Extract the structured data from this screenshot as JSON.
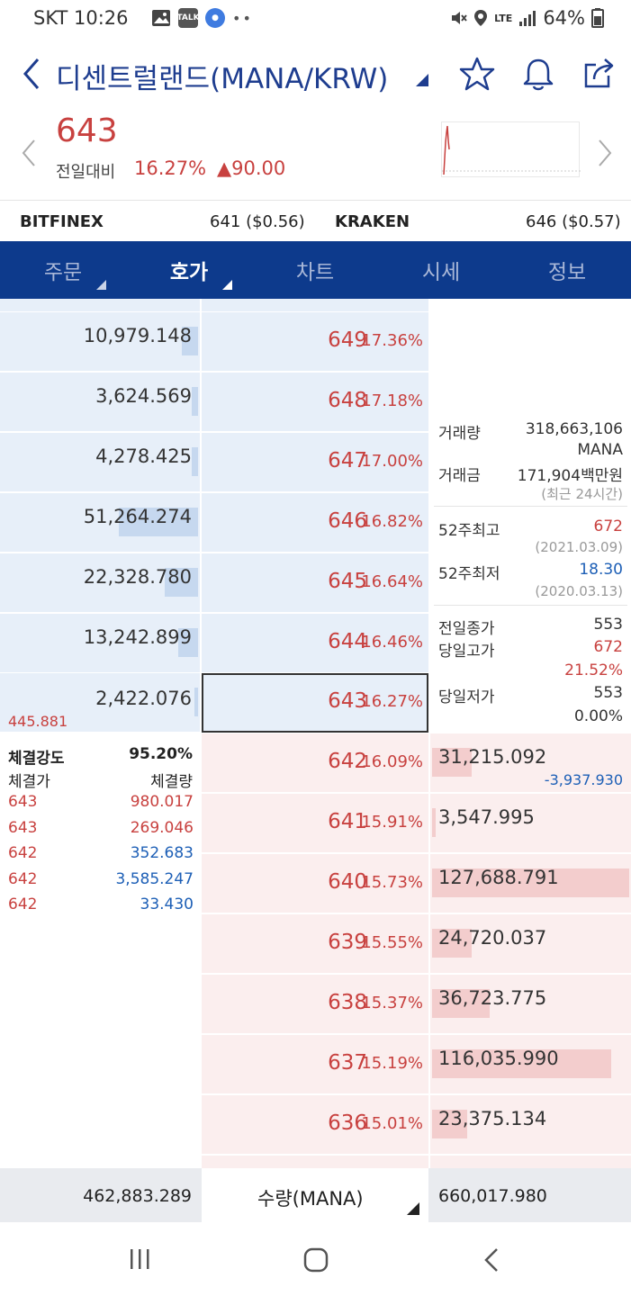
{
  "status_bar": {
    "carrier_time": "SKT 10:26",
    "battery": "64%",
    "network": "LTE",
    "talk_badge": "TALK"
  },
  "header": {
    "title": "디센트럴랜드(MANA/KRW)",
    "icons": [
      "back-icon",
      "star-icon",
      "bell-icon",
      "share-icon"
    ]
  },
  "price": {
    "current": "643",
    "compare_label": "전일대비",
    "rate": "16.27%",
    "diff": "▲90.00"
  },
  "exchanges": {
    "left_name": "BITFINEX",
    "left_value": "641 ($0.56)",
    "right_name": "KRAKEN",
    "right_value": "646 ($0.57)"
  },
  "tabs": [
    {
      "label": "주문"
    },
    {
      "label": "호가"
    },
    {
      "label": "차트"
    },
    {
      "label": "시세"
    },
    {
      "label": "정보"
    }
  ],
  "asks": [
    {
      "volume": "10,979.148",
      "price": "649",
      "rate": "17.36%",
      "bar": 0.08
    },
    {
      "volume": "3,624.569",
      "price": "648",
      "rate": "17.18%",
      "bar": 0.03
    },
    {
      "volume": "4,278.425",
      "price": "647",
      "rate": "17.00%",
      "bar": 0.03
    },
    {
      "volume": "51,264.274",
      "price": "646",
      "rate": "16.82%",
      "bar": 0.4
    },
    {
      "volume": "22,328.780",
      "price": "645",
      "rate": "16.64%",
      "bar": 0.17
    },
    {
      "volume": "13,242.899",
      "price": "644",
      "rate": "16.46%",
      "bar": 0.1
    },
    {
      "volume": "2,422.076",
      "price": "643",
      "rate": "16.27%",
      "bar": 0.02
    }
  ],
  "bids": [
    {
      "volume": "31,215.092",
      "price": "642",
      "rate": "16.09%",
      "bar": 0.2,
      "change": "-3,937.930"
    },
    {
      "volume": "3,547.995",
      "price": "641",
      "rate": "15.91%",
      "bar": 0.02
    },
    {
      "volume": "127,688.791",
      "price": "640",
      "rate": "15.73%",
      "bar": 1.0
    },
    {
      "volume": "24,720.037",
      "price": "639",
      "rate": "15.55%",
      "bar": 0.2
    },
    {
      "volume": "36,723.775",
      "price": "638",
      "rate": "15.37%",
      "bar": 0.29
    },
    {
      "volume": "116,035.990",
      "price": "637",
      "rate": "15.19%",
      "bar": 0.91
    },
    {
      "volume": "23,375.134",
      "price": "636",
      "rate": "15.01%",
      "bar": 0.18
    }
  ],
  "ask_change": "445.881",
  "info": {
    "volume_label": "거래량",
    "volume_value": "318,663,106",
    "volume_unit": "MANA",
    "amount_label": "거래금",
    "amount_value": "171,904백만원",
    "amount_note": "(최근 24시간)",
    "high52_label": "52주최고",
    "high52_value": "672",
    "high52_date": "(2021.03.09)",
    "low52_label": "52주최저",
    "low52_value": "18.30",
    "low52_date": "(2020.03.13)",
    "prev_close_label": "전일종가",
    "prev_close_value": "553",
    "day_high_label": "당일고가",
    "day_high_value": "672",
    "day_high_rate": "21.52%",
    "day_low_label": "당일저가",
    "day_low_value": "553",
    "day_low_rate": "0.00%"
  },
  "trades": {
    "strength_label": "체결강도",
    "strength_value": "95.20%",
    "price_header": "체결가",
    "volume_header": "체결량",
    "rows": [
      {
        "price": "643",
        "volume": "980.017",
        "side": "buy"
      },
      {
        "price": "643",
        "volume": "269.046",
        "side": "buy"
      },
      {
        "price": "642",
        "volume": "352.683",
        "side": "sell"
      },
      {
        "price": "642",
        "volume": "3,585.247",
        "side": "sell"
      },
      {
        "price": "642",
        "volume": "33.430",
        "side": "sell"
      }
    ]
  },
  "totals": {
    "ask_total": "462,883.289",
    "unit_label": "수량(MANA)",
    "bid_total": "660,017.980"
  },
  "colors": {
    "navy": "#0d3a8c",
    "up": "#c8413f",
    "down": "#1d5fb6"
  }
}
